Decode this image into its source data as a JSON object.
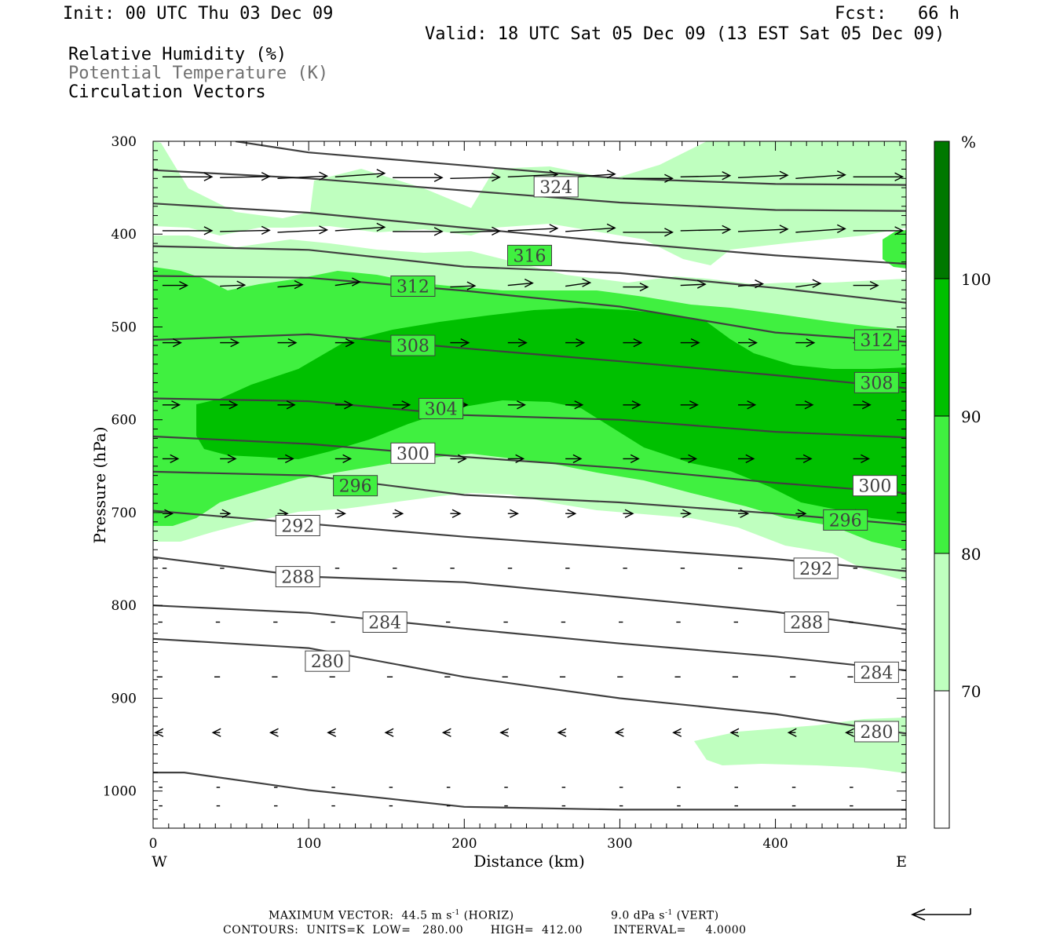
{
  "header": {
    "init": "Init: 00 UTC Thu 03 Dec 09",
    "fcst": "Fcst:   66 h",
    "valid": "Valid: 18 UTC Sat 05 Dec 09 (13 EST Sat 05 Dec 09)",
    "field1": "Relative Humidity (%)",
    "field2": "Potential Temperature (K)",
    "field3": "Circulation Vectors"
  },
  "footer": {
    "max_vector": "MAXIMUM VECTOR:  44.5 m s",
    "max_vector_sup": "-1",
    "horiz": " (HORIZ)",
    "vert_val": "9.0 dPa s",
    "vert_sup": "-1",
    "vert": " (VERT)",
    "contours": "CONTOURS:  UNITS=K  LOW=   280.00       HIGH=  412.00        INTERVAL=     4.0000"
  },
  "chart_data": {
    "type": "cross-section",
    "xlabel": "Distance (km)",
    "ylabel": "Pressure (hPa)",
    "x_ticks": [
      0,
      100,
      200,
      300,
      400
    ],
    "y_ticks": [
      300,
      400,
      500,
      600,
      700,
      800,
      900,
      1000
    ],
    "xlim": [
      0,
      484
    ],
    "ylim": [
      300,
      1040
    ],
    "y_inverted": true,
    "x_end_labels": {
      "left": "W",
      "right": "E"
    },
    "colorbar": {
      "unit": "%",
      "levels": [
        70,
        80,
        90,
        100
      ],
      "colors": [
        "#ffffff",
        "#bfffbf",
        "#40f040",
        "#00c000",
        "#007800"
      ]
    },
    "theta_contours": [
      {
        "theta": 280,
        "p_at_x": [
          [
            0,
            836
          ],
          [
            100,
            846
          ],
          [
            200,
            877
          ],
          [
            300,
            900
          ],
          [
            400,
            917
          ],
          [
            484,
            938
          ]
        ],
        "labels": [
          [
            112,
            860
          ],
          [
            465,
            936
          ]
        ]
      },
      {
        "theta": 284,
        "p_at_x": [
          [
            0,
            800
          ],
          [
            100,
            808
          ],
          [
            200,
            825
          ],
          [
            300,
            841
          ],
          [
            400,
            855
          ],
          [
            484,
            870
          ]
        ],
        "labels": [
          [
            149,
            818
          ],
          [
            465,
            872
          ]
        ]
      },
      {
        "theta": 288,
        "p_at_x": [
          [
            0,
            748
          ],
          [
            100,
            769
          ],
          [
            200,
            775
          ],
          [
            300,
            791
          ],
          [
            400,
            807
          ],
          [
            484,
            826
          ]
        ],
        "labels": [
          [
            93,
            769
          ],
          [
            420,
            818
          ]
        ]
      },
      {
        "theta": 292,
        "p_at_x": [
          [
            0,
            698
          ],
          [
            100,
            712
          ],
          [
            200,
            726
          ],
          [
            300,
            738
          ],
          [
            400,
            750
          ],
          [
            484,
            763
          ]
        ],
        "labels": [
          [
            93,
            714
          ],
          [
            426,
            760
          ]
        ]
      },
      {
        "theta": 296,
        "p_at_x": [
          [
            0,
            656
          ],
          [
            100,
            660
          ],
          [
            200,
            681
          ],
          [
            300,
            689
          ],
          [
            400,
            701
          ],
          [
            484,
            713
          ]
        ],
        "labels": [
          [
            130,
            671
          ],
          [
            445,
            708
          ]
        ]
      },
      {
        "theta": 300,
        "p_at_x": [
          [
            0,
            618
          ],
          [
            100,
            626
          ],
          [
            200,
            640
          ],
          [
            300,
            652
          ],
          [
            400,
            668
          ],
          [
            484,
            679
          ]
        ],
        "labels": [
          [
            167,
            636
          ],
          [
            464,
            671
          ]
        ]
      },
      {
        "theta": 304,
        "p_at_x": [
          [
            0,
            577
          ],
          [
            100,
            580
          ],
          [
            200,
            595
          ],
          [
            300,
            600
          ],
          [
            400,
            613
          ],
          [
            484,
            619
          ]
        ],
        "labels": [
          [
            185,
            588
          ]
        ]
      },
      {
        "theta": 308,
        "p_at_x": [
          [
            0,
            514
          ],
          [
            100,
            508
          ],
          [
            200,
            523
          ],
          [
            300,
            537
          ],
          [
            400,
            552
          ],
          [
            484,
            566
          ]
        ],
        "labels": [
          [
            167,
            520
          ],
          [
            465,
            560
          ]
        ]
      },
      {
        "theta": 312,
        "p_at_x": [
          [
            0,
            445
          ],
          [
            100,
            447
          ],
          [
            200,
            461
          ],
          [
            300,
            478
          ],
          [
            400,
            506
          ],
          [
            484,
            516
          ]
        ],
        "labels": [
          [
            167,
            456
          ],
          [
            465,
            514
          ]
        ]
      },
      {
        "theta": 316,
        "p_at_x": [
          [
            0,
            413
          ],
          [
            100,
            417
          ],
          [
            200,
            435
          ],
          [
            300,
            442
          ],
          [
            400,
            458
          ],
          [
            484,
            474
          ]
        ],
        "labels": [
          [
            242,
            423
          ]
        ]
      },
      {
        "theta": 320,
        "p_at_x": [
          [
            0,
            367
          ],
          [
            100,
            377
          ],
          [
            200,
            393
          ],
          [
            300,
            409
          ],
          [
            400,
            423
          ],
          [
            484,
            432
          ]
        ],
        "labels": []
      },
      {
        "theta": 324,
        "p_at_x": [
          [
            0,
            331
          ],
          [
            100,
            340
          ],
          [
            200,
            353
          ],
          [
            300,
            366
          ],
          [
            400,
            374
          ],
          [
            484,
            375
          ]
        ],
        "labels": [
          [
            259,
            349
          ]
        ]
      },
      {
        "theta": 328,
        "p_at_x": [
          [
            53,
            300
          ],
          [
            100,
            312
          ],
          [
            200,
            326
          ],
          [
            300,
            340
          ],
          [
            400,
            346
          ],
          [
            484,
            347
          ]
        ],
        "labels": []
      },
      {
        "theta": 296,
        "p_at_x": [
          [
            0,
            980
          ],
          [
            20,
            980
          ],
          [
            100,
            999
          ],
          [
            200,
            1017
          ],
          [
            300,
            1020
          ],
          [
            484,
            1020
          ]
        ],
        "labels": []
      }
    ],
    "rh_regions": [
      {
        "level": "70-80",
        "note": "broad moist layer ~400-760 hPa"
      },
      {
        "level": "80-90",
        "note": "main moist layer ~450-700 hPa"
      },
      {
        "level": "90-100",
        "note": "core ~480-650 hPa"
      }
    ],
    "vector_rows_p": [
      340,
      398,
      457,
      517,
      584,
      642,
      701,
      760,
      818,
      877,
      937,
      996,
      1016
    ]
  }
}
